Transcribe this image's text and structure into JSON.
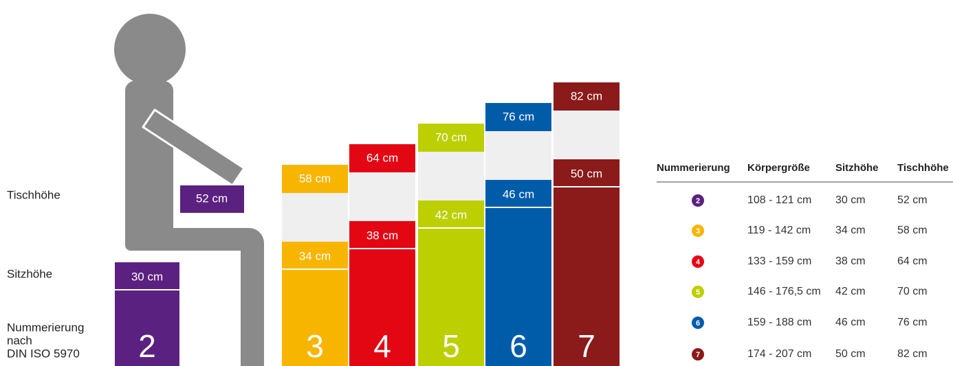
{
  "labels": {
    "table_height": "Tischhöhe",
    "seat_height": "Sitzhöhe",
    "numbering": [
      "Nummerierung",
      "nach",
      "DIN ISO 5970"
    ]
  },
  "sizes": [
    {
      "number": "2",
      "color": "#5b2180",
      "seat": "30 cm",
      "table": "52 cm"
    },
    {
      "number": "3",
      "color": "#f7b500",
      "seat": "34 cm",
      "table": "58 cm"
    },
    {
      "number": "4",
      "color": "#e30613",
      "seat": "38 cm",
      "table": "64 cm"
    },
    {
      "number": "5",
      "color": "#bccf00",
      "seat": "42 cm",
      "table": "70 cm"
    },
    {
      "number": "6",
      "color": "#005ca9",
      "seat": "46 cm",
      "table": "76 cm"
    },
    {
      "number": "7",
      "color": "#8b1a1a",
      "seat": "50 cm",
      "table": "82 cm"
    }
  ],
  "table": {
    "headers": [
      "Nummerierung",
      "Körpergröße",
      "Sitzhöhe",
      "Tischhöhe"
    ],
    "rows": [
      [
        "2",
        "108 - 121 cm",
        "30 cm",
        "52 cm"
      ],
      [
        "3",
        "119 - 142 cm",
        "34 cm",
        "58 cm"
      ],
      [
        "4",
        "133 - 159 cm",
        "38 cm",
        "64 cm"
      ],
      [
        "5",
        "146 - 176,5 cm",
        "42 cm",
        "70 cm"
      ],
      [
        "6",
        "159 - 188 cm",
        "46 cm",
        "76 cm"
      ],
      [
        "7",
        "174 - 207 cm",
        "50 cm",
        "82 cm"
      ]
    ]
  }
}
